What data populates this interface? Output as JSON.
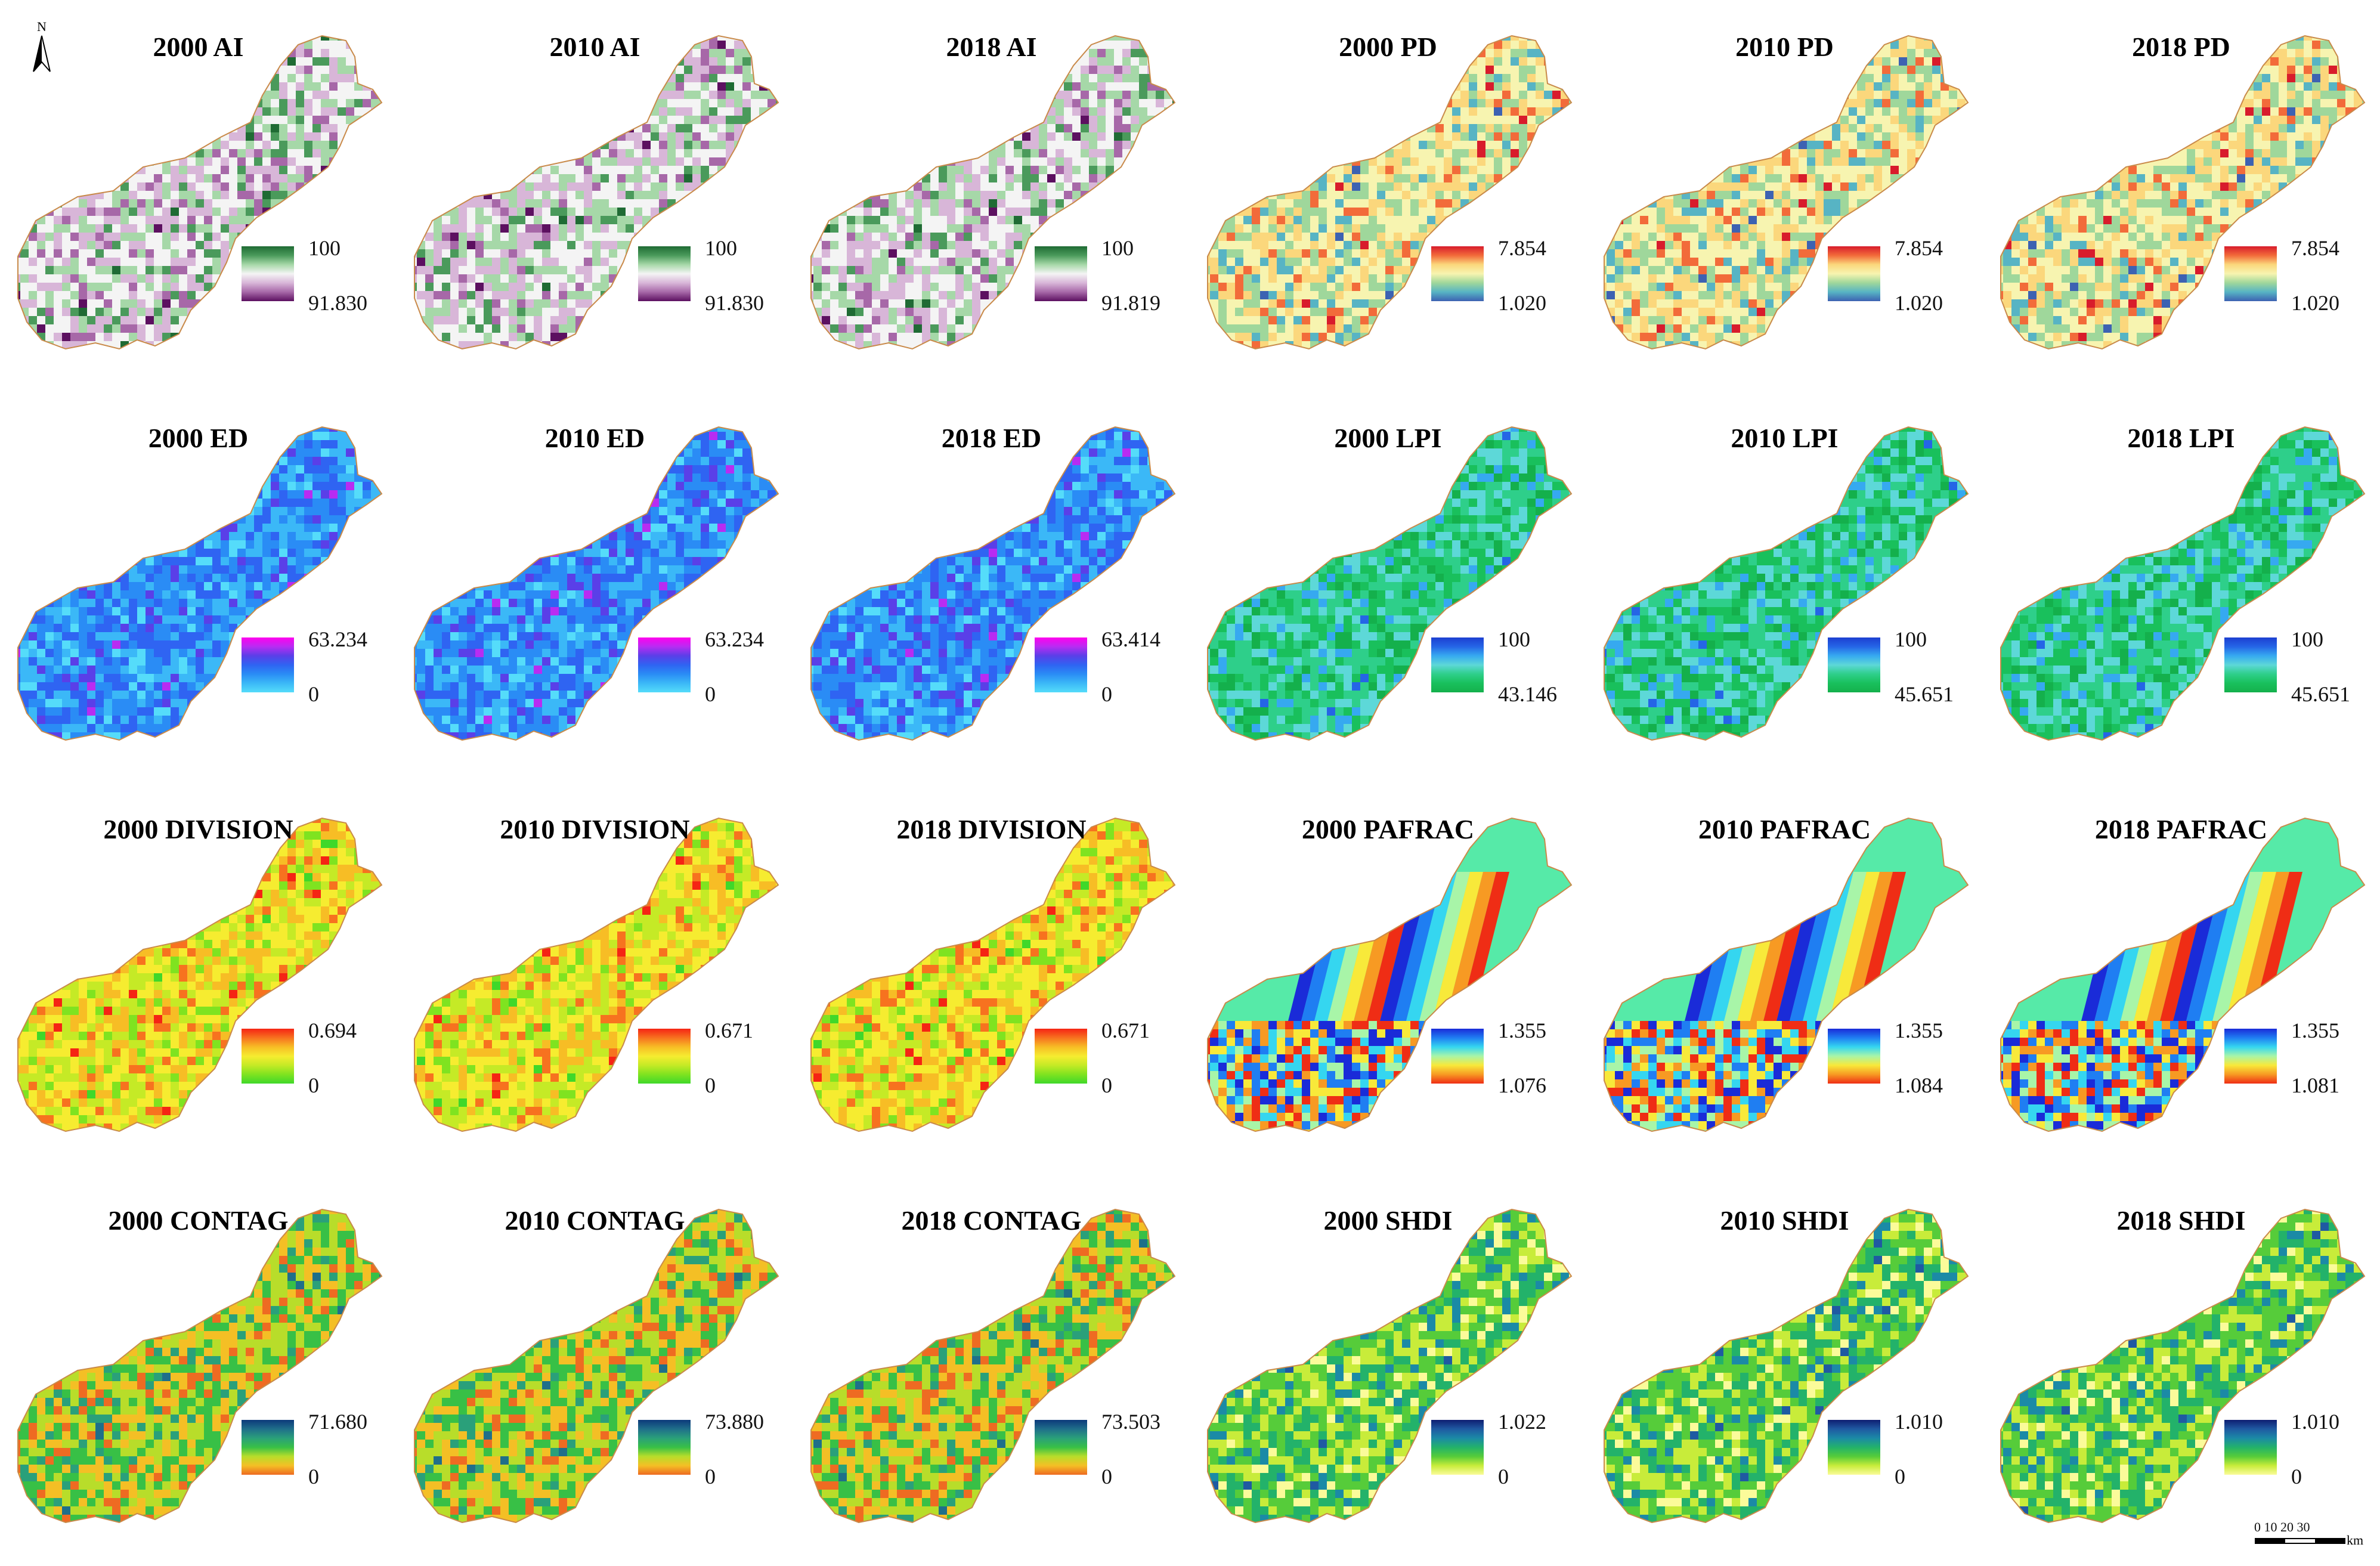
{
  "north_label": "N",
  "scale": {
    "ticks": "0 10 20 30",
    "unit": "km"
  },
  "colormaps": {
    "AI": [
      "#1f6b34",
      "#4a9a5b",
      "#a6d8a8",
      "#f4f4f4",
      "#d8b6d8",
      "#a768a8",
      "#5c1060"
    ],
    "PD": [
      "#d81c2c",
      "#f26b3a",
      "#fbd77c",
      "#f7f4b0",
      "#9fd79b",
      "#57b4c4",
      "#3d62b2"
    ],
    "ED": [
      "#ff00ee",
      "#b82cf2",
      "#5a3fe8",
      "#2f64f2",
      "#2a8cf5",
      "#3bb8f7",
      "#55dcfa"
    ],
    "LPI": [
      "#1c3fd1",
      "#2565e6",
      "#36a9f0",
      "#5dd8d8",
      "#2ecf8a",
      "#19c05c",
      "#14b04c"
    ],
    "DIVISION": [
      "#f52414",
      "#f7721f",
      "#f7bd25",
      "#f6ec30",
      "#c5ea26",
      "#7fe320",
      "#3fd82a"
    ],
    "PAFRAC": [
      "#1a2bd8",
      "#1f7ef2",
      "#35d6f0",
      "#a8f5a8",
      "#f8e93a",
      "#f79a23",
      "#ef2d15"
    ],
    "CONTAG": [
      "#0c3a7a",
      "#1f6f8a",
      "#2aa07a",
      "#38c046",
      "#b8dd2a",
      "#f4bf25",
      "#ee6b22"
    ],
    "SHDI": [
      "#0e1e72",
      "#1f5aa2",
      "#1b8aa6",
      "#23b26a",
      "#56cc3a",
      "#c8ec3a",
      "#fbfb9a"
    ]
  },
  "panels": [
    {
      "title": "2000 AI",
      "metric": "AI",
      "max": "100",
      "min": "91.830"
    },
    {
      "title": "2010 AI",
      "metric": "AI",
      "max": "100",
      "min": "91.830"
    },
    {
      "title": "2018 AI",
      "metric": "AI",
      "max": "100",
      "min": "91.819"
    },
    {
      "title": "2000 PD",
      "metric": "PD",
      "max": "7.854",
      "min": "1.020"
    },
    {
      "title": "2010 PD",
      "metric": "PD",
      "max": "7.854",
      "min": "1.020"
    },
    {
      "title": "2018 PD",
      "metric": "PD",
      "max": "7.854",
      "min": "1.020"
    },
    {
      "title": "2000 ED",
      "metric": "ED",
      "max": "63.234",
      "min": "0"
    },
    {
      "title": "2010 ED",
      "metric": "ED",
      "max": "63.234",
      "min": "0"
    },
    {
      "title": "2018 ED",
      "metric": "ED",
      "max": "63.414",
      "min": "0"
    },
    {
      "title": "2000 LPI",
      "metric": "LPI",
      "max": "100",
      "min": "43.146"
    },
    {
      "title": "2010 LPI",
      "metric": "LPI",
      "max": "100",
      "min": "45.651"
    },
    {
      "title": "2018 LPI",
      "metric": "LPI",
      "max": "100",
      "min": "45.651"
    },
    {
      "title": "2000 DIVISION",
      "metric": "DIVISION",
      "max": "0.694",
      "min": "0"
    },
    {
      "title": "2010 DIVISION",
      "metric": "DIVISION",
      "max": "0.671",
      "min": "0"
    },
    {
      "title": "2018 DIVISION",
      "metric": "DIVISION",
      "max": "0.671",
      "min": "0"
    },
    {
      "title": "2000 PAFRAC",
      "metric": "PAFRAC",
      "max": "1.355",
      "min": "1.076"
    },
    {
      "title": "2010 PAFRAC",
      "metric": "PAFRAC",
      "max": "1.355",
      "min": "1.084"
    },
    {
      "title": "2018 PAFRAC",
      "metric": "PAFRAC",
      "max": "1.355",
      "min": "1.081"
    },
    {
      "title": "2000 CONTAG",
      "metric": "CONTAG",
      "max": "71.680",
      "min": "0"
    },
    {
      "title": "2010 CONTAG",
      "metric": "CONTAG",
      "max": "73.880",
      "min": "0"
    },
    {
      "title": "2018 CONTAG",
      "metric": "CONTAG",
      "max": "73.503",
      "min": "0"
    },
    {
      "title": "2000 SHDI",
      "metric": "SHDI",
      "max": "1.022",
      "min": "0"
    },
    {
      "title": "2010 SHDI",
      "metric": "SHDI",
      "max": "1.010",
      "min": "0"
    },
    {
      "title": "2018 SHDI",
      "metric": "SHDI",
      "max": "1.010",
      "min": "0"
    }
  ]
}
